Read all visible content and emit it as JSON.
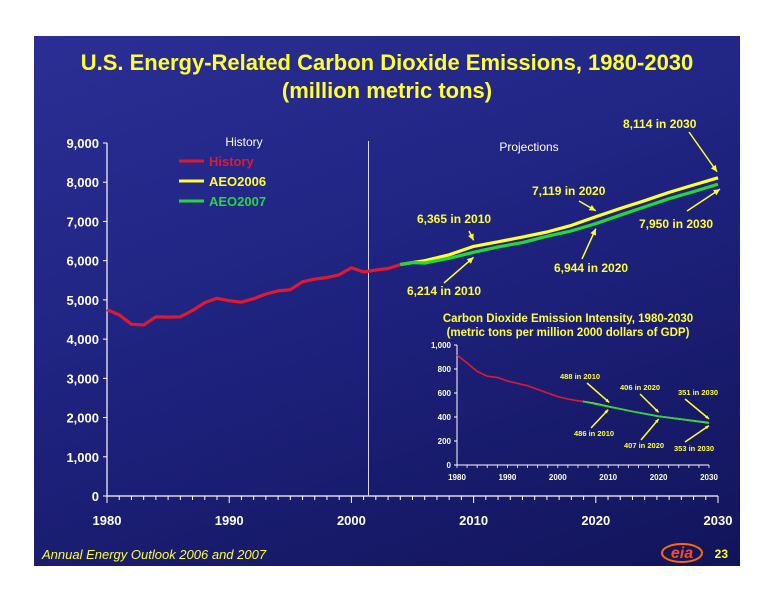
{
  "slide": {
    "title_line1": "U.S. Energy-Related Carbon Dioxide Emissions, 1980-2030",
    "title_line2": "(million metric tons)",
    "footer": "Annual Energy Outlook 2006 and 2007",
    "page_number": "23",
    "logo_text": "eia",
    "colors": {
      "background": "#1f2380",
      "title": "#ffff33",
      "history": "#e01a2e",
      "aeo2006": "#ffff33",
      "aeo2007": "#22d83a"
    }
  },
  "chart_data": [
    {
      "type": "line",
      "title": "U.S. Energy-Related Carbon Dioxide Emissions, 1980-2030",
      "subtitle": "(million metric tons)",
      "xlim": [
        1980,
        2030
      ],
      "ylim": [
        0,
        9000
      ],
      "xticks": [
        1980,
        1990,
        2000,
        2010,
        2020,
        2030
      ],
      "yticks": [
        0,
        1000,
        2000,
        3000,
        4000,
        5000,
        6000,
        7000,
        8000,
        9000
      ],
      "ytick_labels": [
        "0",
        "1,000",
        "2,000",
        "3,000",
        "4,000",
        "5,000",
        "6,000",
        "7,000",
        "8,000",
        "9,000"
      ],
      "divider_year": 2001.4,
      "region_labels": {
        "history": "History",
        "projections": "Projections"
      },
      "legend": {
        "placement": "upper-left",
        "entries": [
          "History",
          "AEO2006",
          "AEO2007"
        ]
      },
      "series": [
        {
          "name": "History",
          "color": "#e01a2e",
          "x": [
            1980,
            1981,
            1982,
            1983,
            1984,
            1985,
            1986,
            1987,
            1988,
            1989,
            1990,
            1991,
            1992,
            1993,
            1994,
            1995,
            1996,
            1997,
            1998,
            1999,
            2000,
            2001,
            2002,
            2003,
            2004,
            2005
          ],
          "y": [
            4750,
            4620,
            4380,
            4360,
            4570,
            4560,
            4570,
            4730,
            4930,
            5040,
            4980,
            4940,
            5030,
            5150,
            5230,
            5260,
            5460,
            5530,
            5570,
            5640,
            5820,
            5710,
            5760,
            5800,
            5900,
            5950
          ]
        },
        {
          "name": "AEO2006",
          "color": "#ffff33",
          "x": [
            2004,
            2005,
            2006,
            2008,
            2010,
            2012,
            2014,
            2016,
            2018,
            2020,
            2022,
            2024,
            2026,
            2028,
            2030
          ],
          "y": [
            5900,
            5950,
            6000,
            6150,
            6365,
            6480,
            6600,
            6730,
            6900,
            7119,
            7330,
            7530,
            7740,
            7930,
            8114
          ]
        },
        {
          "name": "AEO2007",
          "color": "#22d83a",
          "x": [
            2004,
            2005,
            2006,
            2008,
            2010,
            2012,
            2014,
            2016,
            2018,
            2020,
            2022,
            2024,
            2026,
            2028,
            2030
          ],
          "y": [
            5900,
            5950,
            5940,
            6060,
            6214,
            6350,
            6460,
            6620,
            6760,
            6944,
            7160,
            7370,
            7580,
            7760,
            7950
          ]
        }
      ],
      "annotations": [
        {
          "text": "6,365 in 2010",
          "x": 2010,
          "y": 6365,
          "series": "AEO2006"
        },
        {
          "text": "7,119 in 2020",
          "x": 2020,
          "y": 7119,
          "series": "AEO2006"
        },
        {
          "text": "8,114 in 2030",
          "x": 2030,
          "y": 8114,
          "series": "AEO2006"
        },
        {
          "text": "6,214 in 2010",
          "x": 2010,
          "y": 6214,
          "series": "AEO2007"
        },
        {
          "text": "6,944 in 2020",
          "x": 2020,
          "y": 6944,
          "series": "AEO2007"
        },
        {
          "text": "7,950 in 2030",
          "x": 2030,
          "y": 7950,
          "series": "AEO2007"
        }
      ]
    },
    {
      "type": "line",
      "title": "Carbon Dioxide Emission Intensity, 1980-2030",
      "subtitle": "(metric tons per million 2000 dollars of GDP)",
      "xlim": [
        1980,
        2030
      ],
      "ylim": [
        0,
        1000
      ],
      "xticks": [
        1980,
        1990,
        2000,
        2010,
        2020,
        2030
      ],
      "yticks": [
        0,
        200,
        400,
        600,
        800,
        1000
      ],
      "ytick_labels": [
        "0",
        "200",
        "400",
        "600",
        "800",
        "1,000"
      ],
      "series": [
        {
          "name": "History",
          "color": "#e01a2e",
          "x": [
            1980,
            1982,
            1984,
            1986,
            1988,
            1990,
            1992,
            1994,
            1996,
            1998,
            2000,
            2002,
            2004,
            2005
          ],
          "y": [
            917,
            850,
            780,
            740,
            730,
            700,
            680,
            660,
            630,
            600,
            570,
            550,
            535,
            530
          ]
        },
        {
          "name": "AEO2006",
          "color": "#ffff33",
          "x": [
            2005,
            2007,
            2010,
            2015,
            2020,
            2025,
            2030
          ],
          "y": [
            530,
            515,
            488,
            445,
            406,
            378,
            351
          ]
        },
        {
          "name": "AEO2007",
          "color": "#22d83a",
          "x": [
            2005,
            2007,
            2010,
            2015,
            2020,
            2025,
            2030
          ],
          "y": [
            530,
            512,
            486,
            445,
            407,
            380,
            353
          ]
        }
      ],
      "annotations": [
        {
          "text": "488 in 2010",
          "x": 2010,
          "y": 488,
          "series": "AEO2006"
        },
        {
          "text": "406 in 2020",
          "x": 2020,
          "y": 406,
          "series": "AEO2006"
        },
        {
          "text": "351 in 2030",
          "x": 2030,
          "y": 351,
          "series": "AEO2006"
        },
        {
          "text": "486 in 2010",
          "x": 2010,
          "y": 486,
          "series": "AEO2007"
        },
        {
          "text": "407 in 2020",
          "x": 2020,
          "y": 407,
          "series": "AEO2007"
        },
        {
          "text": "353 in 2030",
          "x": 2030,
          "y": 353,
          "series": "AEO2007"
        }
      ]
    }
  ]
}
